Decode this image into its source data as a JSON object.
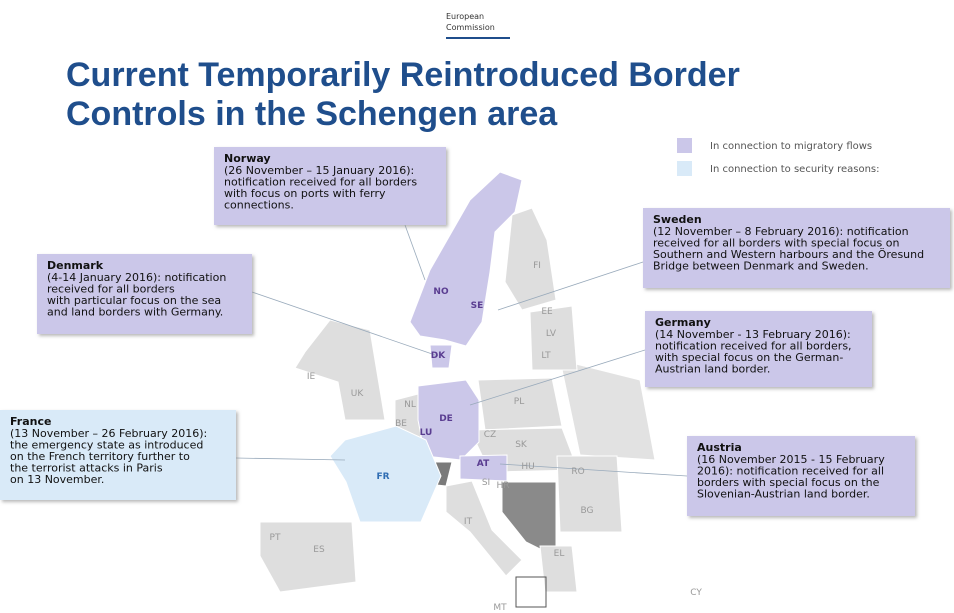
{
  "header": {
    "logo": [
      "European",
      "Commission"
    ]
  },
  "title": [
    "Current Temporarily Reintroduced Border",
    "Controls in the Schengen area"
  ],
  "legend": [
    {
      "label": "In connection to migratory flows",
      "color": "#cbc7e9"
    },
    {
      "label": "In connection to security reasons:",
      "color": "#d9eaf8"
    }
  ],
  "callouts": [
    {
      "country": "Norway",
      "color": "#cbc7e9",
      "lines": [
        "(26 November – 15 January 2016):",
        "notification received for all borders",
        "with focus on ports with ferry",
        "connections."
      ]
    },
    {
      "country": "Sweden",
      "color": "#cbc7e9",
      "lines": [
        "(12 November – 8 February 2016): notification",
        "received for all borders  with special focus on",
        "Southern and Western harbours and the Öresund",
        "Bridge between Denmark and Sweden."
      ]
    },
    {
      "country": "Denmark",
      "color": "#cbc7e9",
      "lines": [
        "(4-14 January 2016): notification",
        "received for all borders",
        "with particular focus on the sea",
        "and land borders with Germany."
      ]
    },
    {
      "country": "Germany",
      "color": "#cbc7e9",
      "lines": [
        "(14 November - 13 February 2016):",
        "notification received for all borders,",
        "with special focus on the German-",
        "Austrian land border."
      ]
    },
    {
      "country": "France",
      "color": "#d9eaf8",
      "lines": [
        "(13 November – 26 February 2016):",
        "the emergency state as introduced",
        "on the French territory further to",
        "the terrorist attacks in Paris",
        "on 13 November."
      ]
    },
    {
      "country": "Austria",
      "color": "#cbc7e9",
      "lines": [
        "(16 November 2015 - 15 February",
        "2016): notification received for all",
        "borders with special focus on the",
        "Slovenian-Austrian land border."
      ]
    }
  ],
  "map_labels": [
    "NO",
    "SE",
    "FI",
    "EE",
    "LV",
    "LT",
    "DK",
    "IE",
    "UK",
    "NL",
    "BE",
    "LU",
    "DE",
    "PL",
    "CZ",
    "SK",
    "HU",
    "RO",
    "AT",
    "SI",
    "HR",
    "FR",
    "IT",
    "BG",
    "EL",
    "PT",
    "ES",
    "CY",
    "MT"
  ]
}
